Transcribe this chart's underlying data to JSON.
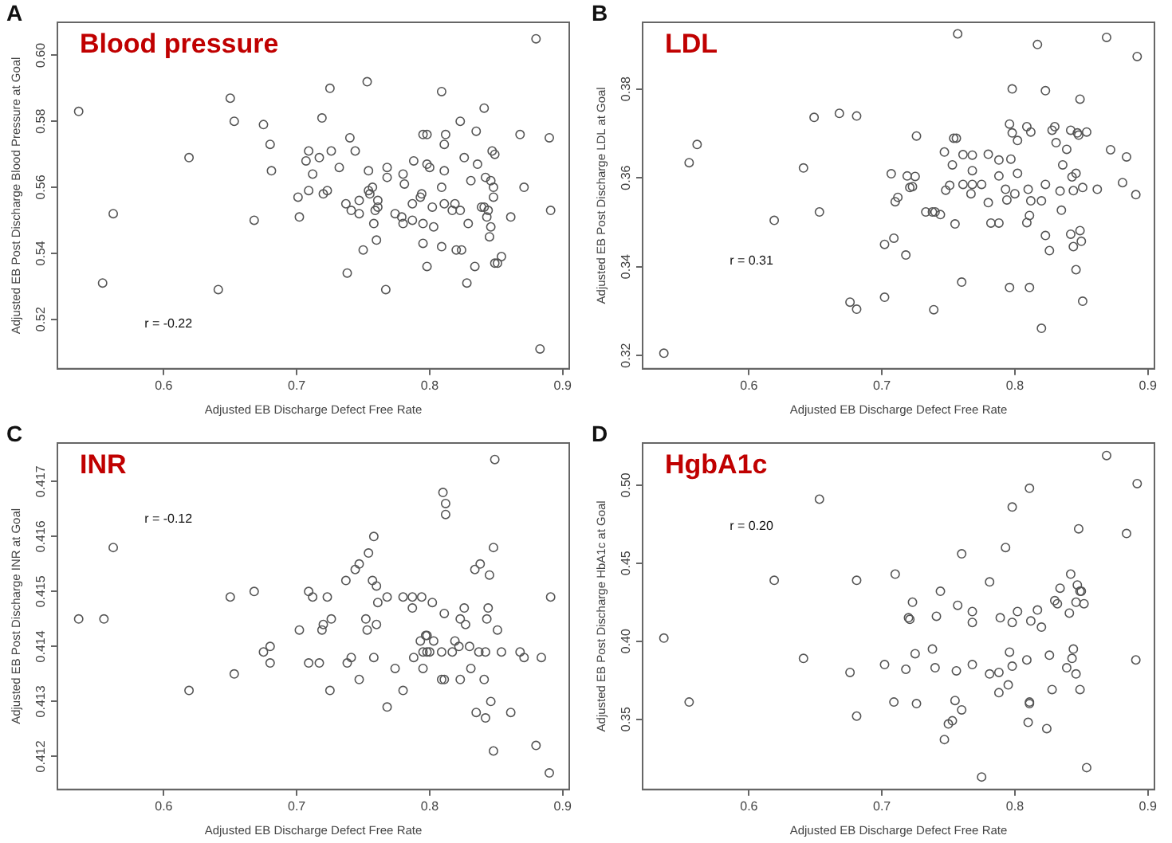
{
  "chart_data": [
    {
      "type": "scatter",
      "title": "Blood pressure",
      "xlabel": "Adjusted EB Discharge Defect Free Rate",
      "ylabel": "Adjusted EB Post Discharge Blood Pressure at Goal",
      "annotations": [
        "A",
        "r = -0.22"
      ],
      "marker": "circle",
      "xlim": [
        0.52,
        0.905
      ],
      "xticks": [
        0.6,
        0.7,
        0.8,
        0.9
      ],
      "ylim": [
        0.505,
        0.61
      ],
      "yticks": [
        0.52,
        0.54,
        0.56,
        0.58,
        {
          "value": 0.6,
          "label": "0.60"
        }
      ],
      "x": [
        0.536,
        0.554,
        0.562,
        0.619,
        0.641,
        0.65,
        0.653,
        0.668,
        0.675,
        0.68,
        0.681,
        0.701,
        0.702,
        0.707,
        0.709,
        0.709,
        0.712,
        0.717,
        0.719,
        0.72,
        0.723,
        0.725,
        0.726,
        0.732,
        0.738,
        0.737,
        0.74,
        0.741,
        0.744,
        0.747,
        0.747,
        0.75,
        0.753,
        0.754,
        0.754,
        0.755,
        0.757,
        0.758,
        0.759,
        0.76,
        0.761,
        0.761,
        0.767,
        0.768,
        0.768,
        0.774,
        0.779,
        0.78,
        0.78,
        0.781,
        0.787,
        0.787,
        0.788,
        0.793,
        0.794,
        0.795,
        0.795,
        0.795,
        0.798,
        0.798,
        0.798,
        0.8,
        0.802,
        0.803,
        0.809,
        0.809,
        0.809,
        0.811,
        0.811,
        0.811,
        0.812,
        0.817,
        0.819,
        0.82,
        0.823,
        0.823,
        0.824,
        0.826,
        0.828,
        0.829,
        0.831,
        0.834,
        0.835,
        0.836,
        0.839,
        0.841,
        0.841,
        0.842,
        0.843,
        0.844,
        0.845,
        0.846,
        0.846,
        0.847,
        0.848,
        0.848,
        0.849,
        0.849,
        0.851,
        0.854,
        0.861,
        0.868,
        0.871,
        0.88,
        0.883,
        0.89,
        0.891
      ],
      "series": [
        {
          "color": "#555555",
          "values": [
            0.583,
            0.531,
            0.552,
            0.569,
            0.529,
            0.587,
            0.58,
            0.55,
            0.579,
            0.573,
            0.565,
            0.557,
            0.551,
            0.568,
            0.571,
            0.559,
            0.564,
            0.569,
            0.581,
            0.558,
            0.559,
            0.59,
            0.571,
            0.566,
            0.534,
            0.555,
            0.575,
            0.553,
            0.571,
            0.552,
            0.556,
            0.541,
            0.592,
            0.559,
            0.565,
            0.558,
            0.56,
            0.549,
            0.553,
            0.544,
            0.554,
            0.556,
            0.529,
            0.566,
            0.563,
            0.552,
            0.551,
            0.549,
            0.564,
            0.561,
            0.555,
            0.55,
            0.568,
            0.557,
            0.558,
            0.549,
            0.543,
            0.576,
            0.576,
            0.567,
            0.536,
            0.566,
            0.554,
            0.548,
            0.542,
            0.56,
            0.589,
            0.573,
            0.565,
            0.555,
            0.576,
            0.553,
            0.555,
            0.541,
            0.553,
            0.58,
            0.541,
            0.569,
            0.531,
            0.549,
            0.562,
            0.536,
            0.577,
            0.567,
            0.554,
            0.554,
            0.584,
            0.563,
            0.551,
            0.553,
            0.545,
            0.548,
            0.562,
            0.571,
            0.56,
            0.557,
            0.57,
            0.537,
            0.537,
            0.539,
            0.551,
            0.576,
            0.56,
            0.605,
            0.511,
            0.575,
            0.553
          ]
        }
      ]
    },
    {
      "type": "scatter",
      "title": "LDL",
      "xlabel": "Adjusted EB Discharge Defect Free Rate",
      "ylabel": "Adjusted EB Post Discharge LDL at Goal",
      "annotations": [
        "B",
        "r = 0.31"
      ],
      "marker": "circle",
      "xlim": [
        0.52,
        0.905
      ],
      "xticks": [
        0.6,
        0.7,
        0.8,
        0.9
      ],
      "ylim": [
        0.317,
        0.395
      ],
      "yticks": [
        0.32,
        0.34,
        0.36,
        0.38
      ],
      "x": [
        0.536,
        0.555,
        0.561,
        0.619,
        0.641,
        0.649,
        0.653,
        0.668,
        0.676,
        0.681,
        0.681,
        0.702,
        0.702,
        0.707,
        0.709,
        0.71,
        0.712,
        0.718,
        0.719,
        0.721,
        0.723,
        0.725,
        0.726,
        0.733,
        0.738,
        0.739,
        0.74,
        0.744,
        0.747,
        0.748,
        0.751,
        0.753,
        0.755,
        0.754,
        0.756,
        0.757,
        0.76,
        0.761,
        0.761,
        0.768,
        0.768,
        0.768,
        0.767,
        0.775,
        0.78,
        0.78,
        0.782,
        0.788,
        0.788,
        0.788,
        0.793,
        0.794,
        0.796,
        0.796,
        0.797,
        0.798,
        0.798,
        0.8,
        0.802,
        0.802,
        0.809,
        0.809,
        0.81,
        0.811,
        0.811,
        0.812,
        0.812,
        0.817,
        0.82,
        0.82,
        0.823,
        0.823,
        0.823,
        0.826,
        0.828,
        0.83,
        0.831,
        0.834,
        0.835,
        0.836,
        0.839,
        0.842,
        0.842,
        0.843,
        0.844,
        0.844,
        0.846,
        0.846,
        0.847,
        0.848,
        0.849,
        0.849,
        0.85,
        0.851,
        0.851,
        0.854,
        0.862,
        0.869,
        0.872,
        0.881,
        0.884,
        0.891,
        0.892
      ],
      "series": [
        {
          "color": "#555555",
          "values": [
            0.3205,
            0.3634,
            0.3675,
            0.3504,
            0.3622,
            0.3736,
            0.3523,
            0.3745,
            0.332,
            0.3739,
            0.3304,
            0.345,
            0.3331,
            0.3609,
            0.3464,
            0.3546,
            0.3556,
            0.3426,
            0.3604,
            0.3578,
            0.358,
            0.3603,
            0.3694,
            0.3523,
            0.3523,
            0.3303,
            0.3523,
            0.3517,
            0.3658,
            0.3572,
            0.3583,
            0.3629,
            0.3496,
            0.3689,
            0.3689,
            0.3924,
            0.3365,
            0.3652,
            0.3585,
            0.3651,
            0.3616,
            0.3585,
            0.3564,
            0.3585,
            0.3653,
            0.3544,
            0.3498,
            0.3604,
            0.3498,
            0.364,
            0.3574,
            0.355,
            0.3721,
            0.3353,
            0.3642,
            0.3701,
            0.38,
            0.3564,
            0.3684,
            0.361,
            0.3499,
            0.3715,
            0.3574,
            0.3353,
            0.3515,
            0.3548,
            0.3703,
            0.39,
            0.3548,
            0.3261,
            0.347,
            0.3585,
            0.3796,
            0.3436,
            0.3707,
            0.3715,
            0.3679,
            0.357,
            0.3527,
            0.3629,
            0.3664,
            0.3707,
            0.3473,
            0.3602,
            0.3571,
            0.3445,
            0.3393,
            0.361,
            0.3701,
            0.3696,
            0.3777,
            0.3481,
            0.3457,
            0.3578,
            0.3322,
            0.3703,
            0.3574,
            0.3916,
            0.3663,
            0.3589,
            0.3647,
            0.3562,
            0.3873
          ]
        }
      ]
    },
    {
      "type": "scatter",
      "title": "INR",
      "xlabel": "Adjusted EB Discharge Defect Free Rate",
      "ylabel": "Adjusted EB Post Discharge INR at Goal",
      "annotations": [
        "C",
        "r = -0.12"
      ],
      "marker": "circle",
      "xlim": [
        0.52,
        0.905
      ],
      "xticks": [
        0.6,
        0.7,
        0.8,
        0.9
      ],
      "ylim": [
        0.4114,
        0.4177
      ],
      "yticks": [
        0.412,
        0.413,
        0.414,
        0.415,
        0.416,
        0.417
      ],
      "x": [
        0.536,
        0.555,
        0.562,
        0.619,
        0.65,
        0.653,
        0.668,
        0.675,
        0.68,
        0.68,
        0.702,
        0.709,
        0.709,
        0.712,
        0.717,
        0.719,
        0.72,
        0.723,
        0.725,
        0.726,
        0.737,
        0.738,
        0.741,
        0.744,
        0.747,
        0.747,
        0.752,
        0.753,
        0.754,
        0.757,
        0.758,
        0.758,
        0.76,
        0.761,
        0.76,
        0.768,
        0.768,
        0.774,
        0.78,
        0.78,
        0.787,
        0.787,
        0.788,
        0.793,
        0.794,
        0.795,
        0.795,
        0.797,
        0.798,
        0.798,
        0.8,
        0.802,
        0.803,
        0.809,
        0.809,
        0.81,
        0.811,
        0.811,
        0.812,
        0.812,
        0.817,
        0.819,
        0.822,
        0.823,
        0.823,
        0.826,
        0.827,
        0.83,
        0.831,
        0.834,
        0.835,
        0.837,
        0.838,
        0.841,
        0.842,
        0.842,
        0.843,
        0.844,
        0.845,
        0.846,
        0.848,
        0.848,
        0.849,
        0.851,
        0.854,
        0.861,
        0.868,
        0.871,
        0.88,
        0.884,
        0.89,
        0.891
      ],
      "series": [
        {
          "color": "#555555",
          "values": [
            0.4145,
            0.4145,
            0.4158,
            0.4132,
            0.4149,
            0.4135,
            0.415,
            0.4139,
            0.414,
            0.4137,
            0.4143,
            0.4137,
            0.415,
            0.4149,
            0.4137,
            0.4143,
            0.4144,
            0.4149,
            0.4132,
            0.4145,
            0.4152,
            0.4137,
            0.4138,
            0.4154,
            0.4155,
            0.4134,
            0.4145,
            0.4143,
            0.4157,
            0.4152,
            0.4138,
            0.416,
            0.4151,
            0.4148,
            0.4144,
            0.4149,
            0.4129,
            0.4136,
            0.4149,
            0.4132,
            0.4149,
            0.4147,
            0.4138,
            0.4141,
            0.4149,
            0.4139,
            0.4136,
            0.4142,
            0.4139,
            0.4142,
            0.4139,
            0.4148,
            0.4141,
            0.4139,
            0.4134,
            0.4168,
            0.4146,
            0.4134,
            0.4164,
            0.4166,
            0.4139,
            0.4141,
            0.414,
            0.4134,
            0.4145,
            0.4147,
            0.4144,
            0.414,
            0.4136,
            0.4154,
            0.4128,
            0.4139,
            0.4155,
            0.4134,
            0.4127,
            0.4139,
            0.4145,
            0.4147,
            0.4153,
            0.413,
            0.4158,
            0.4121,
            0.4174,
            0.4143,
            0.4139,
            0.4128,
            0.4139,
            0.4138,
            0.4122,
            0.4138,
            0.4117,
            0.4149
          ]
        }
      ]
    },
    {
      "type": "scatter",
      "title": "HgbA1c",
      "xlabel": "Adjusted EB Discharge Defect Free Rate",
      "ylabel": "Adjusted EB Post Discharge HbA1c at Goal",
      "annotations": [
        "D",
        "r = 0.20"
      ],
      "marker": "circle",
      "xlim": [
        0.52,
        0.905
      ],
      "xticks": [
        0.6,
        0.7,
        0.8,
        0.9
      ],
      "ylim": [
        0.305,
        0.527
      ],
      "yticks": [
        0.35,
        {
          "value": 0.4,
          "label": "0.40"
        },
        0.45,
        {
          "value": 0.5,
          "label": "0.50"
        }
      ],
      "x": [
        0.536,
        0.555,
        0.619,
        0.641,
        0.653,
        0.676,
        0.681,
        0.681,
        0.702,
        0.709,
        0.71,
        0.718,
        0.72,
        0.721,
        0.723,
        0.725,
        0.726,
        0.738,
        0.74,
        0.741,
        0.744,
        0.747,
        0.75,
        0.753,
        0.755,
        0.756,
        0.757,
        0.76,
        0.76,
        0.768,
        0.768,
        0.768,
        0.775,
        0.781,
        0.781,
        0.788,
        0.788,
        0.789,
        0.793,
        0.795,
        0.796,
        0.798,
        0.798,
        0.798,
        0.802,
        0.809,
        0.81,
        0.811,
        0.811,
        0.812,
        0.811,
        0.817,
        0.82,
        0.824,
        0.826,
        0.828,
        0.83,
        0.832,
        0.834,
        0.839,
        0.841,
        0.842,
        0.843,
        0.844,
        0.846,
        0.846,
        0.847,
        0.848,
        0.849,
        0.85,
        0.849,
        0.852,
        0.854,
        0.869,
        0.884,
        0.891,
        0.892
      ],
      "series": [
        {
          "color": "#555555",
          "values": [
            0.402,
            0.361,
            0.439,
            0.389,
            0.491,
            0.38,
            0.439,
            0.352,
            0.385,
            0.361,
            0.443,
            0.382,
            0.415,
            0.414,
            0.425,
            0.392,
            0.36,
            0.395,
            0.383,
            0.416,
            0.432,
            0.337,
            0.347,
            0.349,
            0.362,
            0.381,
            0.423,
            0.456,
            0.356,
            0.419,
            0.412,
            0.385,
            0.313,
            0.438,
            0.379,
            0.38,
            0.367,
            0.415,
            0.46,
            0.372,
            0.393,
            0.384,
            0.412,
            0.486,
            0.419,
            0.388,
            0.348,
            0.361,
            0.36,
            0.413,
            0.498,
            0.42,
            0.409,
            0.344,
            0.391,
            0.369,
            0.426,
            0.424,
            0.434,
            0.383,
            0.418,
            0.443,
            0.389,
            0.395,
            0.425,
            0.379,
            0.436,
            0.472,
            0.432,
            0.432,
            0.369,
            0.424,
            0.319,
            0.519,
            0.469,
            0.388,
            0.501
          ]
        }
      ]
    }
  ]
}
